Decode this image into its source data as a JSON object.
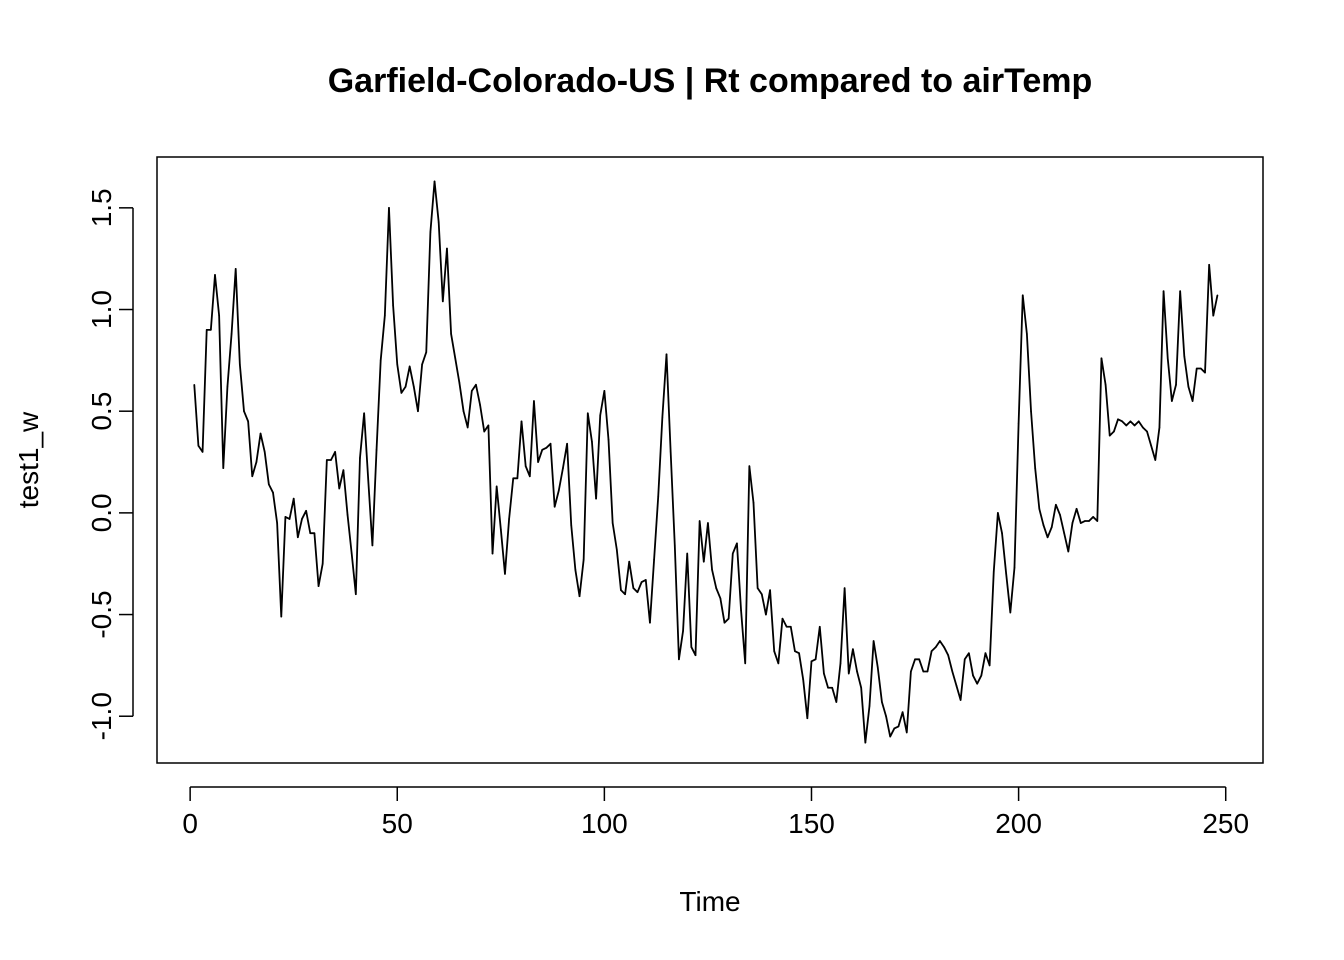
{
  "chart_data": {
    "type": "line",
    "title": "Garfield-Colorado-US | Rt compared to airTemp",
    "xlabel": "Time",
    "ylabel": "test1_w",
    "xlim": [
      -8,
      259
    ],
    "ylim": [
      -1.23,
      1.75
    ],
    "x_ticks": [
      0,
      50,
      100,
      150,
      200,
      250
    ],
    "x_tick_labels": [
      "0",
      "50",
      "100",
      "150",
      "200",
      "250"
    ],
    "y_ticks": [
      -1.0,
      -0.5,
      0.0,
      0.5,
      1.0,
      1.5
    ],
    "y_tick_labels": [
      "-1.0",
      "-0.5",
      "0.0",
      "0.5",
      "1.0",
      "1.5"
    ],
    "grid": false,
    "legend": "none",
    "x_start": 1,
    "series": [
      {
        "color": "#000000",
        "values": [
          0.63,
          0.33,
          0.3,
          0.9,
          0.9,
          1.17,
          0.97,
          0.22,
          0.62,
          0.88,
          1.2,
          0.73,
          0.5,
          0.45,
          0.18,
          0.25,
          0.39,
          0.3,
          0.14,
          0.1,
          -0.05,
          -0.51,
          -0.02,
          -0.03,
          0.07,
          -0.12,
          -0.03,
          0.01,
          -0.1,
          -0.1,
          -0.36,
          -0.25,
          0.26,
          0.26,
          0.3,
          0.12,
          0.21,
          -0.01,
          -0.2,
          -0.4,
          0.27,
          0.49,
          0.16,
          -0.16,
          0.31,
          0.75,
          0.97,
          1.5,
          1.02,
          0.73,
          0.59,
          0.62,
          0.72,
          0.62,
          0.5,
          0.73,
          0.79,
          1.38,
          1.63,
          1.43,
          1.04,
          1.3,
          0.88,
          0.76,
          0.64,
          0.5,
          0.42,
          0.6,
          0.63,
          0.53,
          0.4,
          0.43,
          -0.2,
          0.13,
          -0.08,
          -0.3,
          -0.03,
          0.17,
          0.17,
          0.45,
          0.23,
          0.18,
          0.55,
          0.25,
          0.31,
          0.32,
          0.34,
          0.03,
          0.11,
          0.22,
          0.34,
          -0.06,
          -0.28,
          -0.41,
          -0.23,
          0.49,
          0.35,
          0.07,
          0.48,
          0.6,
          0.36,
          -0.05,
          -0.18,
          -0.38,
          -0.4,
          -0.24,
          -0.37,
          -0.39,
          -0.34,
          -0.33,
          -0.54,
          -0.23,
          0.08,
          0.47,
          0.78,
          0.3,
          -0.16,
          -0.72,
          -0.58,
          -0.2,
          -0.66,
          -0.7,
          -0.04,
          -0.24,
          -0.05,
          -0.28,
          -0.37,
          -0.42,
          -0.54,
          -0.52,
          -0.2,
          -0.15,
          -0.48,
          -0.74,
          0.23,
          0.05,
          -0.37,
          -0.4,
          -0.5,
          -0.38,
          -0.68,
          -0.74,
          -0.52,
          -0.56,
          -0.56,
          -0.68,
          -0.69,
          -0.82,
          -1.01,
          -0.73,
          -0.72,
          -0.56,
          -0.79,
          -0.86,
          -0.86,
          -0.93,
          -0.74,
          -0.37,
          -0.79,
          -0.67,
          -0.78,
          -0.86,
          -1.13,
          -0.95,
          -0.63,
          -0.76,
          -0.93,
          -1.0,
          -1.1,
          -1.06,
          -1.05,
          -0.98,
          -1.08,
          -0.78,
          -0.72,
          -0.72,
          -0.78,
          -0.78,
          -0.68,
          -0.66,
          -0.63,
          -0.66,
          -0.7,
          -0.78,
          -0.85,
          -0.92,
          -0.72,
          -0.69,
          -0.8,
          -0.84,
          -0.8,
          -0.69,
          -0.75,
          -0.29,
          0.0,
          -0.1,
          -0.3,
          -0.49,
          -0.27,
          0.44,
          1.07,
          0.88,
          0.5,
          0.22,
          0.02,
          -0.06,
          -0.12,
          -0.07,
          0.04,
          -0.01,
          -0.1,
          -0.19,
          -0.05,
          0.02,
          -0.05,
          -0.04,
          -0.04,
          -0.02,
          -0.04,
          0.76,
          0.63,
          0.38,
          0.4,
          0.46,
          0.45,
          0.43,
          0.45,
          0.43,
          0.45,
          0.42,
          0.4,
          0.33,
          0.26,
          0.42,
          1.09,
          0.76,
          0.55,
          0.63,
          1.09,
          0.77,
          0.62,
          0.55,
          0.71,
          0.71,
          0.69,
          1.22,
          0.97,
          1.07
        ]
      }
    ]
  }
}
